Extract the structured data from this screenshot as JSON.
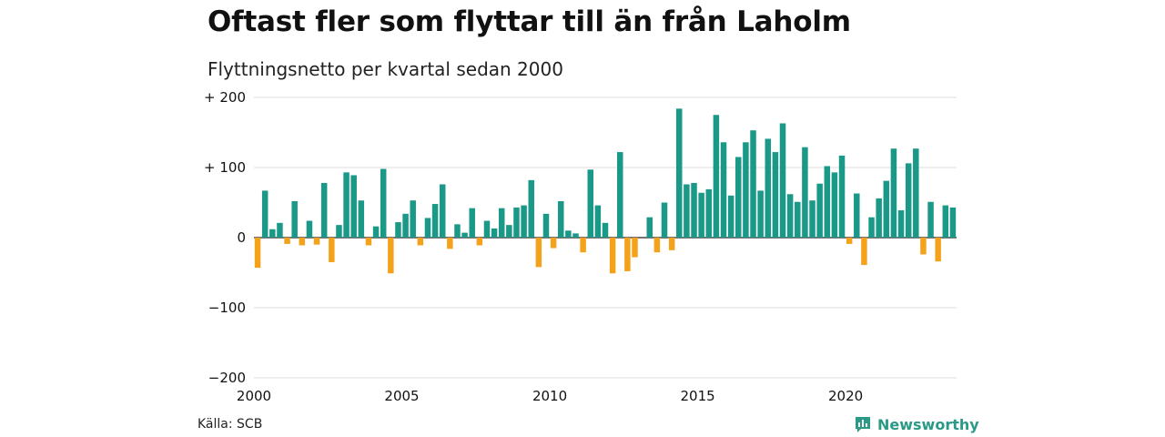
{
  "title": "Oftast fler som flyttar till än från Laholm",
  "subtitle": "Flyttningsnetto per kvartal sedan 2000",
  "source": "Källa: SCB",
  "brand": "Newsworthy",
  "colors": {
    "positive": "#1a9988",
    "negative": "#f5a21b",
    "grid": "#dddddd",
    "brand": "#2a9a86"
  },
  "chart_data": {
    "type": "bar",
    "ylim": [
      -200,
      200
    ],
    "yticks": [
      {
        "value": 200,
        "label": "+ 200"
      },
      {
        "value": 100,
        "label": "+ 100"
      },
      {
        "value": 0,
        "label": "0"
      },
      {
        "value": -100,
        "label": "−100"
      },
      {
        "value": -200,
        "label": "−200"
      }
    ],
    "xticks": [
      {
        "year": 2000,
        "label": "2000"
      },
      {
        "year": 2005,
        "label": "2005"
      },
      {
        "year": 2010,
        "label": "2010"
      },
      {
        "year": 2015,
        "label": "2015"
      },
      {
        "year": 2020,
        "label": "2020"
      }
    ],
    "start_year": 2000,
    "grid": true,
    "values": [
      -43,
      67,
      12,
      21,
      -9,
      52,
      -11,
      24,
      -10,
      78,
      -35,
      18,
      93,
      89,
      53,
      -11,
      16,
      98,
      -51,
      22,
      34,
      53,
      -11,
      28,
      48,
      76,
      -16,
      19,
      7,
      42,
      -11,
      24,
      13,
      42,
      18,
      43,
      46,
      82,
      -42,
      34,
      -15,
      52,
      10,
      6,
      -21,
      97,
      46,
      21,
      -51,
      122,
      -48,
      -28,
      0,
      29,
      -21,
      50,
      -18,
      184,
      76,
      78,
      64,
      69,
      175,
      136,
      60,
      115,
      136,
      153,
      67,
      141,
      122,
      163,
      62,
      51,
      129,
      53,
      77,
      102,
      93,
      117,
      -9,
      63,
      -39,
      29,
      56,
      81,
      127,
      39,
      106,
      127,
      -24,
      51,
      -34,
      46,
      43
    ]
  }
}
